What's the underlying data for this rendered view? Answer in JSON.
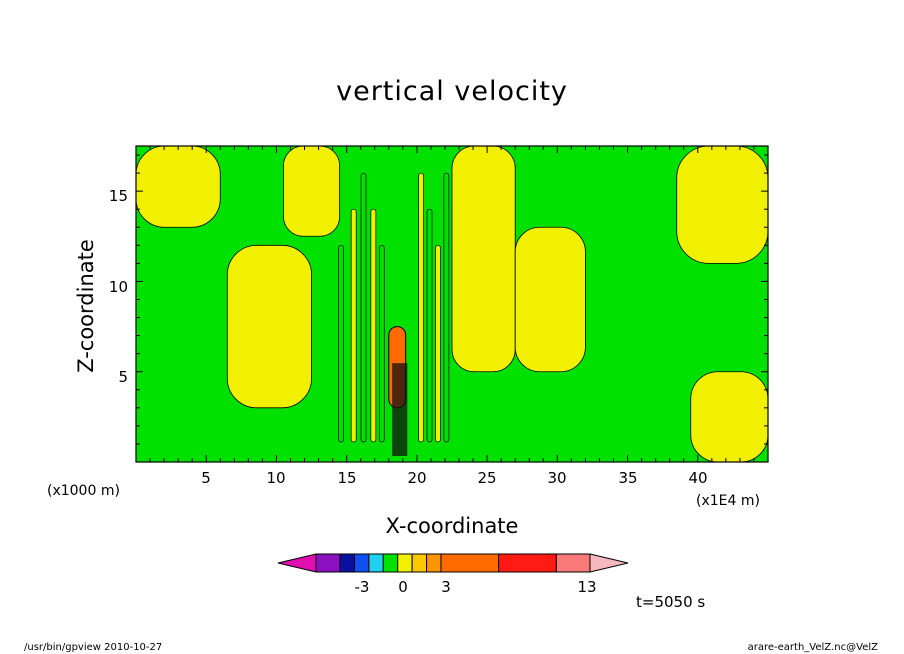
{
  "colors": {
    "green": "#00e100",
    "yellow": "#f0f000",
    "light_yellow": "#fffa00",
    "orange": "#ff6a00",
    "dark_orange": "#e86f10"
  },
  "chart_data": {
    "type": "heatmap",
    "title": "vertical velocity",
    "xlabel": "X-coordinate",
    "ylabel": "Z-coordinate",
    "x_unit_label": "(x1E4 m)",
    "y_unit_label": "(x1000 m)",
    "xlim": [
      0,
      45
    ],
    "ylim": [
      0,
      17.5
    ],
    "x_ticks": [
      5,
      10,
      15,
      20,
      25,
      30,
      35,
      40
    ],
    "y_ticks": [
      5,
      10,
      15
    ],
    "x_tick_labels": [
      "5",
      "10",
      "15",
      "20",
      "25",
      "30",
      "35",
      "40"
    ],
    "y_tick_labels": [
      "5",
      "10",
      "15"
    ],
    "yellow_regions": [
      {
        "x": [
          0,
          6
        ],
        "z": [
          13,
          17.5
        ]
      },
      {
        "x": [
          6.5,
          12.5
        ],
        "z": [
          3,
          12
        ]
      },
      {
        "x": [
          10.5,
          14.5
        ],
        "z": [
          12.5,
          17.5
        ]
      },
      {
        "x": [
          22.5,
          27
        ],
        "z": [
          5,
          17.5
        ]
      },
      {
        "x": [
          27,
          32
        ],
        "z": [
          5,
          13
        ]
      },
      {
        "x": [
          38.5,
          45
        ],
        "z": [
          11,
          17.5
        ]
      },
      {
        "x": [
          39.5,
          45
        ],
        "z": [
          0,
          5
        ]
      }
    ],
    "orange_core": {
      "x": [
        18,
        19.2
      ],
      "z": [
        3,
        7.5
      ]
    },
    "colorbar": {
      "colors": [
        "#e010b0",
        "#8a10c0",
        "#0a10a0",
        "#1050f0",
        "#20d0f0",
        "#00e100",
        "#f0f000",
        "#fac800",
        "#fa9600",
        "#ff6a00",
        "#ff1a14",
        "#f87a78",
        "#f8b8c0"
      ],
      "labels": [
        "-3",
        "0",
        "3",
        "13"
      ]
    },
    "time_label": "t=5050 s"
  },
  "footer": {
    "left": "/usr/bin/gpview 2010-10-27",
    "right": "arare-earth_VelZ.nc@VelZ"
  }
}
